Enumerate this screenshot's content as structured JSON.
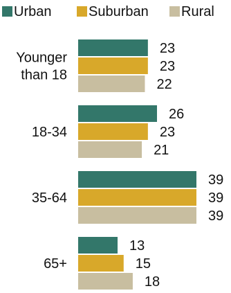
{
  "chart_data": {
    "type": "bar",
    "orientation": "horizontal",
    "legend_position": "top",
    "categories": [
      [
        "Younger",
        "than 18"
      ],
      [
        "18-34"
      ],
      [
        "35-64"
      ],
      [
        "65+"
      ]
    ],
    "series": [
      {
        "name": "Urban",
        "color": "#33776a",
        "values": [
          23,
          26,
          39,
          13
        ]
      },
      {
        "name": "Suburban",
        "color": "#d8a82a",
        "values": [
          23,
          23,
          39,
          15
        ]
      },
      {
        "name": "Rural",
        "color": "#c8bea0",
        "values": [
          22,
          21,
          39,
          18
        ]
      }
    ],
    "xlim": [
      0,
      39
    ],
    "grid": false,
    "data_labels": true
  }
}
